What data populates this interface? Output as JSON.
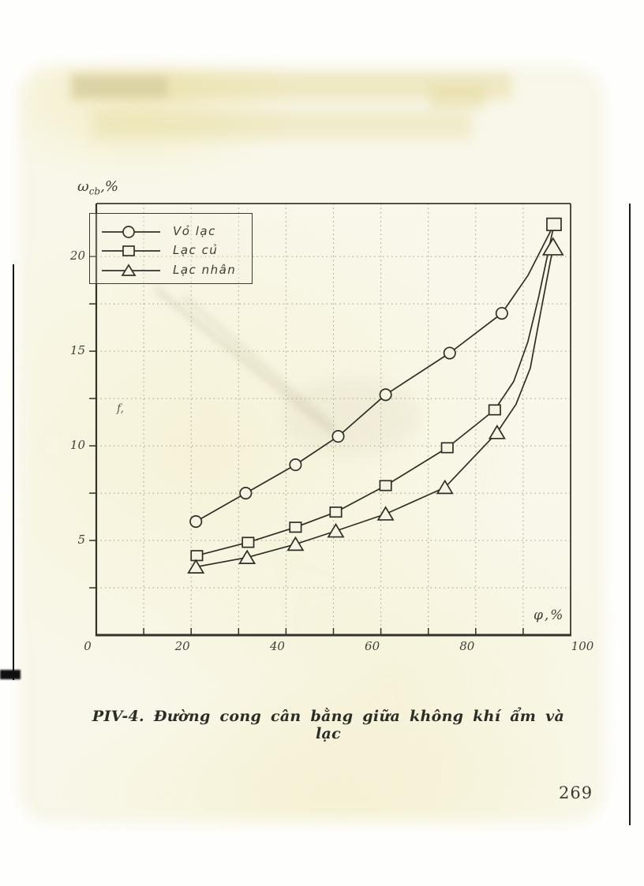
{
  "page": {
    "caption": "PIV-4. Đường cong cân bằng giữa không khí ẩm và lạc",
    "page_number": "269",
    "stray_mark": "f,"
  },
  "chart_data": {
    "type": "line",
    "title": "",
    "xlabel": "φ,%",
    "ylabel": "ω_cb,%",
    "ylabel_parts": {
      "symbol": "ω",
      "sub": "cb",
      "unit": ",%"
    },
    "xlim": [
      0,
      100
    ],
    "ylim": [
      0,
      22.8
    ],
    "x_ticks": [
      "0",
      "20",
      "40",
      "60",
      "80",
      "100"
    ],
    "x_tick_values": [
      0,
      20,
      40,
      60,
      80,
      100
    ],
    "x_minor_step": 10,
    "y_ticks": [
      "5",
      "10",
      "15",
      "20"
    ],
    "y_tick_values": [
      5,
      10,
      15,
      20
    ],
    "y_minor_step": 2.5,
    "grid": "dotted",
    "legend_position": "top-left-inside",
    "series": [
      {
        "name": "Vỏ lạc",
        "marker": "circle",
        "points": [
          [
            21,
            6.0,
            1
          ],
          [
            31.5,
            7.5,
            1
          ],
          [
            42,
            9.0,
            1
          ],
          [
            51,
            10.5,
            1
          ],
          [
            61,
            12.7,
            1
          ],
          [
            74.5,
            14.9,
            1
          ],
          [
            85.5,
            17.0,
            1
          ],
          [
            91,
            19.0,
            0
          ],
          [
            96.5,
            21.7,
            0
          ]
        ]
      },
      {
        "name": "Lạc củ",
        "marker": "square",
        "points": [
          [
            21.2,
            4.2,
            1
          ],
          [
            32,
            4.9,
            1
          ],
          [
            42,
            5.7,
            1
          ],
          [
            50.5,
            6.5,
            1
          ],
          [
            61,
            7.9,
            1
          ],
          [
            74,
            9.9,
            1
          ],
          [
            84,
            11.9,
            1
          ],
          [
            88,
            13.4,
            0
          ],
          [
            91,
            15.5,
            0
          ],
          [
            93.3,
            17.9,
            0
          ],
          [
            96.5,
            21.7,
            1,
            1.25
          ]
        ]
      },
      {
        "name": "Lạc nhân",
        "marker": "triangle",
        "points": [
          [
            21,
            3.6,
            1
          ],
          [
            31.8,
            4.1,
            1
          ],
          [
            42,
            4.8,
            1
          ],
          [
            50.5,
            5.5,
            1
          ],
          [
            61,
            6.4,
            1
          ],
          [
            73.5,
            7.8,
            1
          ],
          [
            84.5,
            10.7,
            1
          ],
          [
            88.5,
            12.2,
            0
          ],
          [
            91.5,
            14.1,
            0
          ],
          [
            93.8,
            17.2,
            0
          ],
          [
            96.3,
            20.5,
            1,
            1.3
          ]
        ]
      }
    ]
  }
}
